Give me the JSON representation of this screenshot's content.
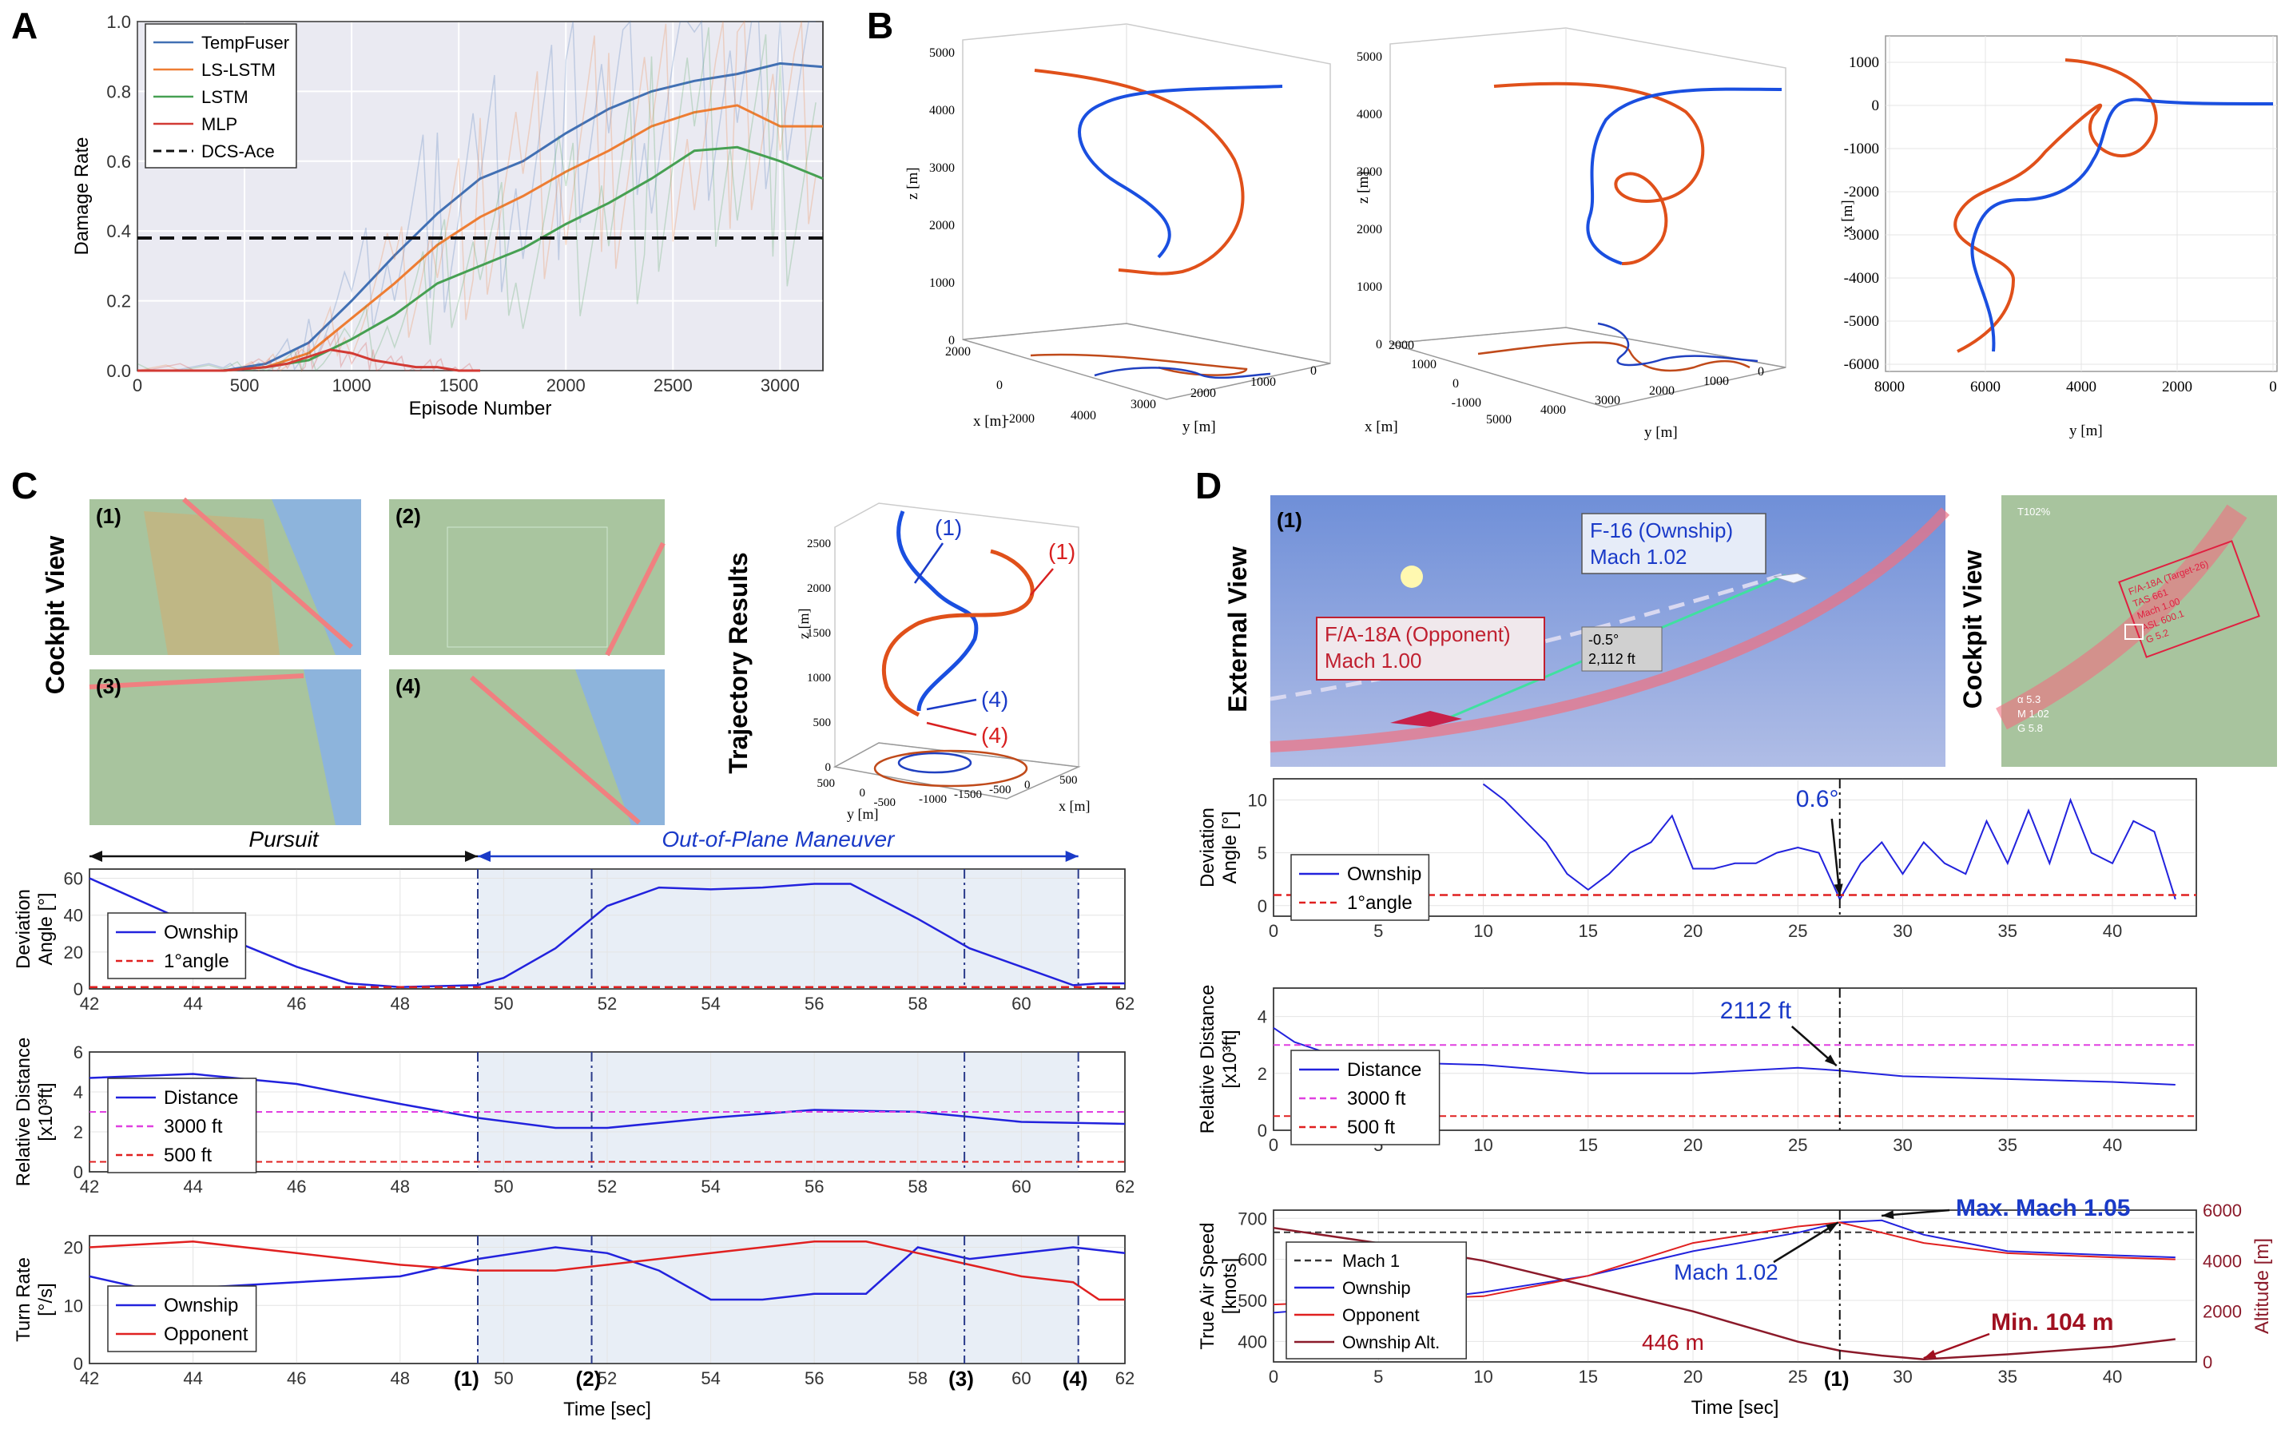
{
  "panel_labels": {
    "a": "A",
    "b": "B",
    "c": "C",
    "d": "D"
  },
  "colors": {
    "blue": "#4170b4",
    "orange": "#ee7d33",
    "green": "#46a052",
    "red": "#d23a34",
    "traj_blue": "#1a4fe0",
    "traj_orange": "#e0501a",
    "line_blue": "#2222dd",
    "line_red": "#e02020",
    "dark_red": "#8b1a2a",
    "magenta": "#e040e0",
    "shade": "#e8eef6"
  },
  "chart_data": [
    {
      "id": "A",
      "type": "line",
      "xlabel": "Episode Number",
      "ylabel": "Damage Rate",
      "xlim": [
        0,
        3200
      ],
      "ylim": [
        0,
        1.0
      ],
      "xticks": [
        0,
        500,
        1000,
        1500,
        2000,
        2500,
        3000
      ],
      "yticks": [
        0.0,
        0.2,
        0.4,
        0.6,
        0.8,
        1.0
      ],
      "xtick_labels": [
        "0",
        "500",
        "1000",
        "1500",
        "2000",
        "2500",
        "3000"
      ],
      "ytick_labels": [
        "0.0",
        "0.2",
        "0.4",
        "0.6",
        "0.8",
        "1.0"
      ],
      "legend": [
        "TempFuser",
        "LS-LSTM",
        "LSTM",
        "MLP",
        "DCS-Ace"
      ],
      "series": [
        {
          "name": "TempFuser",
          "x": [
            0,
            400,
            600,
            800,
            1000,
            1200,
            1400,
            1600,
            1800,
            2000,
            2200,
            2400,
            2600,
            2800,
            3000,
            3200
          ],
          "y": [
            0,
            0,
            0.02,
            0.08,
            0.2,
            0.33,
            0.45,
            0.55,
            0.6,
            0.68,
            0.75,
            0.8,
            0.83,
            0.85,
            0.88,
            0.87
          ]
        },
        {
          "name": "LS-LSTM",
          "x": [
            0,
            400,
            600,
            800,
            1000,
            1200,
            1400,
            1600,
            1800,
            2000,
            2200,
            2400,
            2600,
            2800,
            3000,
            3200
          ],
          "y": [
            0,
            0,
            0.01,
            0.05,
            0.15,
            0.25,
            0.36,
            0.44,
            0.5,
            0.57,
            0.63,
            0.7,
            0.74,
            0.76,
            0.7,
            0.7
          ]
        },
        {
          "name": "LSTM",
          "x": [
            0,
            400,
            600,
            800,
            1000,
            1200,
            1400,
            1600,
            1800,
            2000,
            2200,
            2400,
            2600,
            2800,
            3000,
            3200
          ],
          "y": [
            0,
            0,
            0.01,
            0.03,
            0.09,
            0.16,
            0.25,
            0.3,
            0.35,
            0.42,
            0.48,
            0.55,
            0.63,
            0.64,
            0.6,
            0.55
          ]
        },
        {
          "name": "MLP",
          "x": [
            0,
            400,
            600,
            700,
            800,
            900,
            1000,
            1100,
            1200,
            1300,
            1400,
            1500,
            1600
          ],
          "y": [
            0,
            0,
            0.01,
            0.02,
            0.04,
            0.06,
            0.05,
            0.03,
            0.02,
            0.01,
            0.01,
            0,
            0
          ]
        }
      ],
      "dcs_ace": 0.38
    },
    {
      "id": "C1",
      "type": "line",
      "ylabel": [
        "Deviation",
        "Angle [°]"
      ],
      "xlim": [
        42,
        62
      ],
      "ylim": [
        0,
        65
      ],
      "yticks": [
        0,
        20,
        40,
        60
      ],
      "ytick_labels": [
        "0",
        "20",
        "40",
        "60"
      ],
      "xticks": [
        42,
        44,
        46,
        48,
        50,
        52,
        54,
        56,
        58,
        60,
        62
      ],
      "xtick_labels": [
        "42",
        "44",
        "46",
        "48",
        "50",
        "52",
        "54",
        "56",
        "58",
        "60",
        "62"
      ],
      "legend": [
        "Ownship",
        "1°angle"
      ],
      "series": [
        {
          "name": "Ownship",
          "x": [
            42,
            44,
            46,
            47,
            48,
            49.5,
            50,
            51,
            52,
            53,
            54,
            55,
            56,
            56.7,
            58,
            59,
            60,
            61,
            61.5,
            62
          ],
          "y": [
            60,
            35,
            12,
            3,
            1,
            2,
            6,
            22,
            45,
            55,
            54,
            55,
            57,
            57,
            38,
            22,
            12,
            2,
            3,
            3
          ]
        }
      ],
      "ref": [
        {
          "name": "1°angle",
          "y": 1
        }
      ]
    },
    {
      "id": "C2",
      "type": "line",
      "ylabel": [
        "Relative Distance",
        "[x10³ft]"
      ],
      "xlim": [
        42,
        62
      ],
      "ylim": [
        0,
        6
      ],
      "yticks": [
        0,
        2,
        4,
        6
      ],
      "ytick_labels": [
        "0",
        "2",
        "4",
        "6"
      ],
      "xticks": [
        42,
        44,
        46,
        48,
        50,
        52,
        54,
        56,
        58,
        60,
        62
      ],
      "xtick_labels": [
        "42",
        "44",
        "46",
        "48",
        "50",
        "52",
        "54",
        "56",
        "58",
        "60",
        "62"
      ],
      "legend": [
        "Distance",
        "3000 ft",
        "500 ft"
      ],
      "series": [
        {
          "name": "Distance",
          "x": [
            42,
            44,
            46,
            48,
            49.5,
            51,
            52,
            54,
            56,
            58,
            60,
            62
          ],
          "y": [
            4.7,
            4.9,
            4.4,
            3.4,
            2.7,
            2.2,
            2.2,
            2.7,
            3.1,
            3.0,
            2.5,
            2.4
          ]
        }
      ],
      "ref": [
        {
          "name": "3000 ft",
          "y": 3.0
        },
        {
          "name": "500 ft",
          "y": 0.5
        }
      ]
    },
    {
      "id": "C3",
      "type": "line",
      "ylabel": [
        "Turn Rate",
        "[°/s]"
      ],
      "xlabel": "Time [sec]",
      "xlim": [
        42,
        62
      ],
      "ylim": [
        0,
        22
      ],
      "yticks": [
        0,
        10,
        20
      ],
      "ytick_labels": [
        "0",
        "10",
        "20"
      ],
      "xticks": [
        42,
        44,
        46,
        48,
        50,
        52,
        54,
        56,
        58,
        60,
        62
      ],
      "xtick_labels": [
        "42",
        "44",
        "46",
        "48",
        "50",
        "52",
        "54",
        "56",
        "58",
        "60",
        "62"
      ],
      "legend": [
        "Ownship",
        "Opponent"
      ],
      "series": [
        {
          "name": "Ownship",
          "x": [
            42,
            43,
            44,
            46,
            48,
            49.5,
            51,
            52,
            53,
            54,
            55,
            56,
            57,
            58,
            59,
            60,
            61,
            62
          ],
          "y": [
            15,
            13,
            13,
            14,
            15,
            18,
            20,
            19,
            16,
            11,
            11,
            12,
            12,
            20,
            18,
            19,
            20,
            19
          ]
        },
        {
          "name": "Opponent",
          "x": [
            42,
            43,
            44,
            46,
            48,
            49.5,
            51,
            52,
            54,
            56,
            57,
            58,
            59,
            60,
            61,
            61.5,
            62
          ],
          "y": [
            20,
            20.5,
            21,
            19,
            17,
            16,
            16,
            17,
            19,
            21,
            21,
            19,
            17,
            15,
            14,
            11,
            11
          ]
        }
      ],
      "events": [
        49.5,
        51.7,
        58.9,
        61.1
      ],
      "event_labels": [
        "(1)",
        "(2)",
        "(3)",
        "(4)"
      ]
    },
    {
      "id": "D1",
      "type": "line",
      "ylabel": [
        "Deviation",
        "Angle [°]"
      ],
      "xlim": [
        0,
        44
      ],
      "ylim": [
        -1,
        12
      ],
      "yticks": [
        0,
        5,
        10
      ],
      "ytick_labels": [
        "0",
        "5",
        "10"
      ],
      "xticks": [
        0,
        5,
        10,
        15,
        20,
        25,
        30,
        35,
        40
      ],
      "xtick_labels": [
        "0",
        "5",
        "10",
        "15",
        "20",
        "25",
        "30",
        "35",
        "40"
      ],
      "legend": [
        "Ownship",
        "1°angle"
      ],
      "series": [
        {
          "name": "Ownship",
          "x": [
            10,
            11,
            12,
            13,
            14,
            15,
            16,
            17,
            18,
            19,
            20,
            21,
            22,
            23,
            24,
            25,
            26,
            27,
            28,
            29,
            30,
            31,
            32,
            33,
            34,
            35,
            36,
            37,
            38,
            39,
            40,
            41,
            42,
            43
          ],
          "y": [
            11.5,
            10,
            8,
            6,
            3,
            1.5,
            3,
            5,
            6,
            8.5,
            3.5,
            3.5,
            4,
            4,
            5,
            5.5,
            5,
            0.6,
            4,
            6,
            3,
            6,
            4,
            3,
            8,
            4,
            9,
            4,
            10,
            5,
            4,
            8,
            7,
            0.6
          ]
        }
      ],
      "ref": [
        {
          "name": "1°angle",
          "y": 1
        }
      ],
      "annotation": {
        "text": "0.6°",
        "x": 27,
        "y": 0.6
      }
    },
    {
      "id": "D2",
      "type": "line",
      "ylabel": [
        "Relative Distance",
        "[x10³ft]"
      ],
      "xlim": [
        0,
        44
      ],
      "ylim": [
        0,
        5
      ],
      "yticks": [
        0,
        2,
        4
      ],
      "ytick_labels": [
        "0",
        "2",
        "4"
      ],
      "xticks": [
        0,
        5,
        10,
        15,
        20,
        25,
        30,
        35,
        40
      ],
      "xtick_labels": [
        "0",
        "5",
        "10",
        "15",
        "20",
        "25",
        "30",
        "35",
        "40"
      ],
      "legend": [
        "Distance",
        "3000 ft",
        "500 ft"
      ],
      "series": [
        {
          "name": "Distance",
          "x": [
            0,
            1,
            3,
            5,
            10,
            15,
            20,
            25,
            27,
            30,
            35,
            40,
            43
          ],
          "y": [
            3.6,
            3.1,
            2.6,
            2.4,
            2.3,
            2.0,
            2.0,
            2.2,
            2.1,
            1.9,
            1.8,
            1.7,
            1.6
          ]
        }
      ],
      "ref": [
        {
          "name": "3000 ft",
          "y": 3.0
        },
        {
          "name": "500 ft",
          "y": 0.5
        }
      ],
      "annotation": {
        "text": "2112 ft",
        "x": 27,
        "y": 2.1
      }
    },
    {
      "id": "D3",
      "type": "line",
      "ylabel": [
        "True Air Speed",
        "[knots]"
      ],
      "y2label": "Altitude [m]",
      "xlabel": "Time [sec]",
      "xlim": [
        0,
        44
      ],
      "ylim": [
        350,
        720
      ],
      "yticks": [
        400,
        500,
        600,
        700
      ],
      "ytick_labels": [
        "400",
        "500",
        "600",
        "700"
      ],
      "y2lim": [
        0,
        6000
      ],
      "y2ticks": [
        0,
        2000,
        4000,
        6000
      ],
      "y2tick_labels": [
        "0",
        "2000",
        "4000",
        "6000"
      ],
      "xticks": [
        0,
        5,
        10,
        15,
        20,
        25,
        30,
        35,
        40
      ],
      "xtick_labels": [
        "0",
        "5",
        "10",
        "15",
        "20",
        "25",
        "30",
        "35",
        "40"
      ],
      "legend": [
        "Mach 1",
        "Ownship",
        "Opponent",
        "Ownship Alt."
      ],
      "series": [
        {
          "name": "Ownship",
          "x": [
            0,
            5,
            10,
            15,
            20,
            25,
            27,
            29,
            31,
            35,
            40,
            43
          ],
          "y": [
            470,
            490,
            520,
            560,
            620,
            665,
            690,
            695,
            660,
            620,
            610,
            605
          ]
        },
        {
          "name": "Opponent",
          "x": [
            0,
            5,
            10,
            15,
            20,
            25,
            27,
            29,
            31,
            35,
            40,
            43
          ],
          "y": [
            490,
            500,
            510,
            560,
            640,
            680,
            690,
            665,
            640,
            615,
            605,
            600
          ]
        },
        {
          "name": "Ownship Alt.",
          "axis": "y2",
          "x": [
            0,
            5,
            10,
            15,
            20,
            25,
            27,
            29,
            31,
            35,
            40,
            43
          ],
          "y": [
            5300,
            4700,
            4000,
            3000,
            2000,
            800,
            446,
            250,
            104,
            300,
            600,
            900
          ]
        }
      ],
      "ref": [
        {
          "name": "Mach 1",
          "y": 666
        }
      ],
      "annotations": [
        {
          "text": "Max. Mach 1.05"
        },
        {
          "text": "Mach 1.02"
        },
        {
          "text": "446 m"
        },
        {
          "text": "Min. 104 m"
        }
      ],
      "event_label": "(1)"
    }
  ],
  "panel_b": {
    "labels": {
      "x": "x [m]",
      "y": "y [m]",
      "z": "z [m]"
    },
    "z_ticks": [
      "0",
      "1000",
      "2000",
      "3000",
      "4000",
      "5000"
    ],
    "x_ticks_1": [
      "2000",
      "0",
      "-2000"
    ],
    "y_ticks_1": [
      "4000",
      "3000",
      "2000",
      "1000",
      "0"
    ],
    "x_ticks_2": [
      "2000",
      "1000",
      "0",
      "-1000"
    ],
    "y_ticks_2": [
      "5000",
      "4000",
      "3000",
      "2000",
      "1000",
      "0"
    ],
    "plan_x_ticks": [
      "8000",
      "6000",
      "4000",
      "2000",
      "0"
    ],
    "plan_y_ticks": [
      "1000",
      "0",
      "-1000",
      "-2000",
      "-3000",
      "-4000",
      "-5000",
      "-6000"
    ]
  },
  "panel_c": {
    "cockpit_title": "Cockpit View",
    "traj_title": "Trajectory Results",
    "views": [
      "(1)",
      "(2)",
      "(3)",
      "(4)"
    ],
    "traj_labels": {
      "b1": "(1)",
      "r1": "(1)",
      "b4": "(4)",
      "r4": "(4)"
    },
    "traj_axes": {
      "z": "z [m]",
      "y": "y [m]",
      "x": "x [m]",
      "z_ticks": [
        "0",
        "500",
        "1000",
        "1500",
        "2000",
        "2500"
      ],
      "y_ticks": [
        "500",
        "0",
        "-500"
      ],
      "x_ticks": [
        "-1000",
        "-1500",
        "-500",
        "0",
        "500"
      ]
    },
    "phase_pursuit": "Pursuit",
    "phase_oop": "Out-of-Plane Maneuver"
  },
  "panel_d": {
    "external_title": "External View",
    "cockpit_title": "Cockpit View",
    "view_label": "(1)",
    "f16_line1": "F-16 (Ownship)",
    "f16_line2": "Mach 1.02",
    "fa18_line1": "F/A-18A (Opponent)",
    "fa18_line2": "Mach 1.00",
    "dist_line1": "-0.5°",
    "dist_line2": "2,112 ft",
    "hud_pct": "T102%",
    "hud_box": [
      "F/A-18A (Target-26)",
      "TAS 661",
      "Mach 1.00",
      "ASL 600.1",
      "G 5.2"
    ],
    "hud_left": [
      "α 5.3",
      "M 1.02",
      "G 5.8"
    ]
  }
}
